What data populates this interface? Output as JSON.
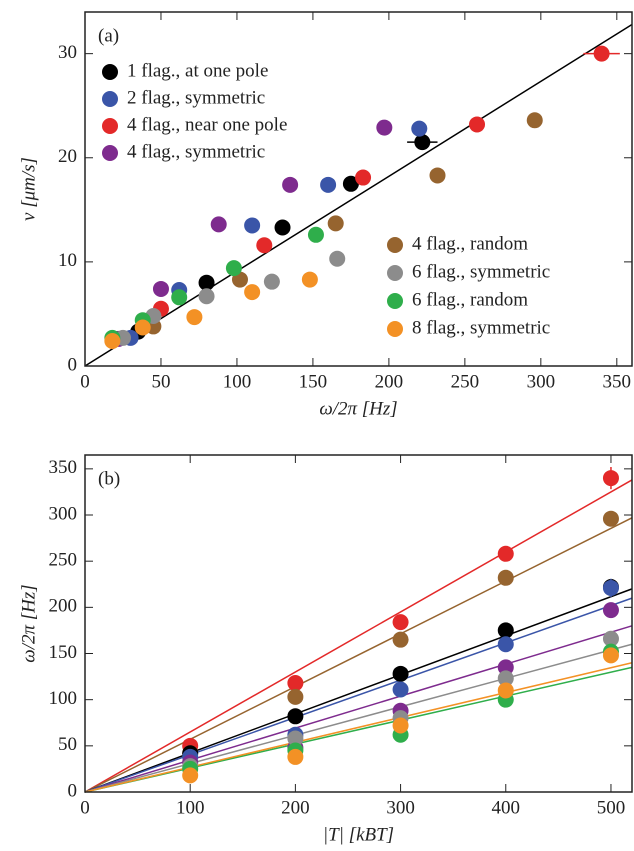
{
  "chart_data": [
    {
      "type": "scatter",
      "annotation": "(a)",
      "x_label": "ω/2π [Hz]",
      "y_label": "v [μm/s]",
      "xlim": [
        0,
        360
      ],
      "xticks": [
        0,
        50,
        100,
        150,
        200,
        250,
        300,
        350
      ],
      "ylim": [
        0,
        34
      ],
      "yticks": [
        0,
        10,
        20,
        30
      ],
      "fit": {
        "color": "#000000",
        "x": [
          0,
          360
        ],
        "y": [
          0,
          32.8
        ]
      },
      "series": [
        {
          "name": "1 flag., at one pole",
          "color": "#000000",
          "x": [
            35,
            80,
            130,
            175,
            222
          ],
          "values": [
            3.3,
            8,
            13.3,
            17.5,
            21.5
          ],
          "x_errors": [
            null,
            null,
            null,
            null,
            10
          ]
        },
        {
          "name": "2 flag., symmetric",
          "color": "#3a55a8",
          "x": [
            30,
            62,
            110,
            160,
            220
          ],
          "values": [
            2.7,
            7.3,
            13.5,
            17.4,
            22.8
          ]
        },
        {
          "name": "4 flag., near one pole",
          "color": "#e32929",
          "x": [
            50,
            118,
            183,
            258,
            340
          ],
          "values": [
            5.5,
            11.6,
            18.1,
            23.2,
            30
          ],
          "x_errors": [
            null,
            null,
            null,
            null,
            12
          ]
        },
        {
          "name": "4 flag., symmetric",
          "color": "#7e2b8e",
          "x": [
            22,
            50,
            88,
            135,
            197
          ],
          "values": [
            2.6,
            7.4,
            13.6,
            17.4,
            22.9
          ]
        },
        {
          "name": "4 flag., random",
          "color": "#96642f",
          "x": [
            45,
            102,
            165,
            232,
            296
          ],
          "values": [
            3.8,
            8.3,
            13.7,
            18.3,
            23.6
          ]
        },
        {
          "name": "6 flag., symmetric",
          "color": "#8c8c8c",
          "x": [
            25,
            45,
            80,
            123,
            166
          ],
          "values": [
            2.7,
            4.8,
            6.7,
            8.1,
            10.3
          ]
        },
        {
          "name": "6 flag., random",
          "color": "#2fae4b",
          "x": [
            18,
            38,
            62,
            98,
            152
          ],
          "values": [
            2.7,
            4.4,
            6.6,
            9.4,
            12.6
          ]
        },
        {
          "name": "8 flag., symmetric",
          "color": "#f39125",
          "x": [
            18,
            38,
            72,
            110,
            148
          ],
          "values": [
            2.4,
            3.7,
            4.7,
            7.1,
            8.3
          ]
        }
      ]
    },
    {
      "type": "scatter",
      "annotation": "(b)",
      "x_label": "|T| [kBT]",
      "y_label": "ω/2π [Hz]",
      "xlim": [
        0,
        520
      ],
      "xticks": [
        0,
        100,
        200,
        300,
        400,
        500
      ],
      "ylim": [
        0,
        365
      ],
      "yticks": [
        0,
        50,
        100,
        150,
        200,
        250,
        300,
        350
      ],
      "series": [
        {
          "color": "#e32929",
          "x": [
            100,
            200,
            300,
            400,
            500
          ],
          "values": [
            50,
            118,
            184,
            258,
            340
          ],
          "errors": [
            null,
            null,
            null,
            null,
            12
          ],
          "fit_x": [
            0,
            520
          ],
          "fit_y": [
            0,
            338
          ]
        },
        {
          "color": "#96642f",
          "x": [
            100,
            200,
            300,
            400,
            500
          ],
          "values": [
            42,
            103,
            165,
            232,
            296
          ],
          "fit_x": [
            0,
            520
          ],
          "fit_y": [
            0,
            297
          ]
        },
        {
          "color": "#000000",
          "x": [
            100,
            200,
            300,
            400,
            500
          ],
          "values": [
            42,
            82,
            128,
            175,
            222
          ],
          "fit_x": [
            0,
            520
          ],
          "fit_y": [
            0,
            220
          ]
        },
        {
          "color": "#3a55a8",
          "x": [
            100,
            200,
            300,
            400,
            500
          ],
          "values": [
            38,
            62,
            111,
            160,
            221
          ],
          "errors": [
            null,
            null,
            null,
            null,
            10
          ],
          "fit_x": [
            0,
            520
          ],
          "fit_y": [
            0,
            210
          ]
        },
        {
          "color": "#7e2b8e",
          "x": [
            100,
            200,
            300,
            400,
            500
          ],
          "values": [
            32,
            48,
            88,
            135,
            197
          ],
          "fit_x": [
            0,
            520
          ],
          "fit_y": [
            0,
            180
          ]
        },
        {
          "color": "#8c8c8c",
          "x": [
            100,
            200,
            300,
            400,
            500
          ],
          "values": [
            28,
            58,
            80,
            123,
            166
          ],
          "fit_x": [
            0,
            520
          ],
          "fit_y": [
            0,
            160
          ]
        },
        {
          "color": "#2fae4b",
          "x": [
            100,
            200,
            300,
            400,
            500
          ],
          "values": [
            25,
            45,
            62,
            100,
            152
          ],
          "fit_x": [
            0,
            520
          ],
          "fit_y": [
            0,
            135
          ]
        },
        {
          "color": "#f39125",
          "x": [
            100,
            200,
            300,
            400,
            500
          ],
          "values": [
            18,
            38,
            72,
            110,
            148
          ],
          "fit_x": [
            0,
            520
          ],
          "fit_y": [
            0,
            140
          ]
        }
      ]
    }
  ]
}
